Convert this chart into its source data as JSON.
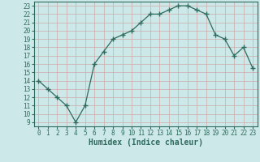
{
  "x": [
    0,
    1,
    2,
    3,
    4,
    5,
    6,
    7,
    8,
    9,
    10,
    11,
    12,
    13,
    14,
    15,
    16,
    17,
    18,
    19,
    20,
    21,
    22,
    23
  ],
  "y": [
    14,
    13,
    12,
    11,
    9,
    11,
    16,
    17.5,
    19,
    19.5,
    20,
    21,
    22,
    22,
    22.5,
    23,
    23,
    22.5,
    22,
    19.5,
    19,
    17,
    18,
    15.5
  ],
  "line_color": "#2e6b5e",
  "marker_color": "#2e6b5e",
  "bg_color": "#cce8e8",
  "grid_color": "#aacccc",
  "xlabel": "Humidex (Indice chaleur)",
  "xlim": [
    -0.5,
    23.5
  ],
  "ylim": [
    8.5,
    23.5
  ],
  "yticks": [
    9,
    10,
    11,
    12,
    13,
    14,
    15,
    16,
    17,
    18,
    19,
    20,
    21,
    22,
    23
  ],
  "xticks": [
    0,
    1,
    2,
    3,
    4,
    5,
    6,
    7,
    8,
    9,
    10,
    11,
    12,
    13,
    14,
    15,
    16,
    17,
    18,
    19,
    20,
    21,
    22,
    23
  ],
  "tick_fontsize": 5.5,
  "xlabel_fontsize": 7
}
